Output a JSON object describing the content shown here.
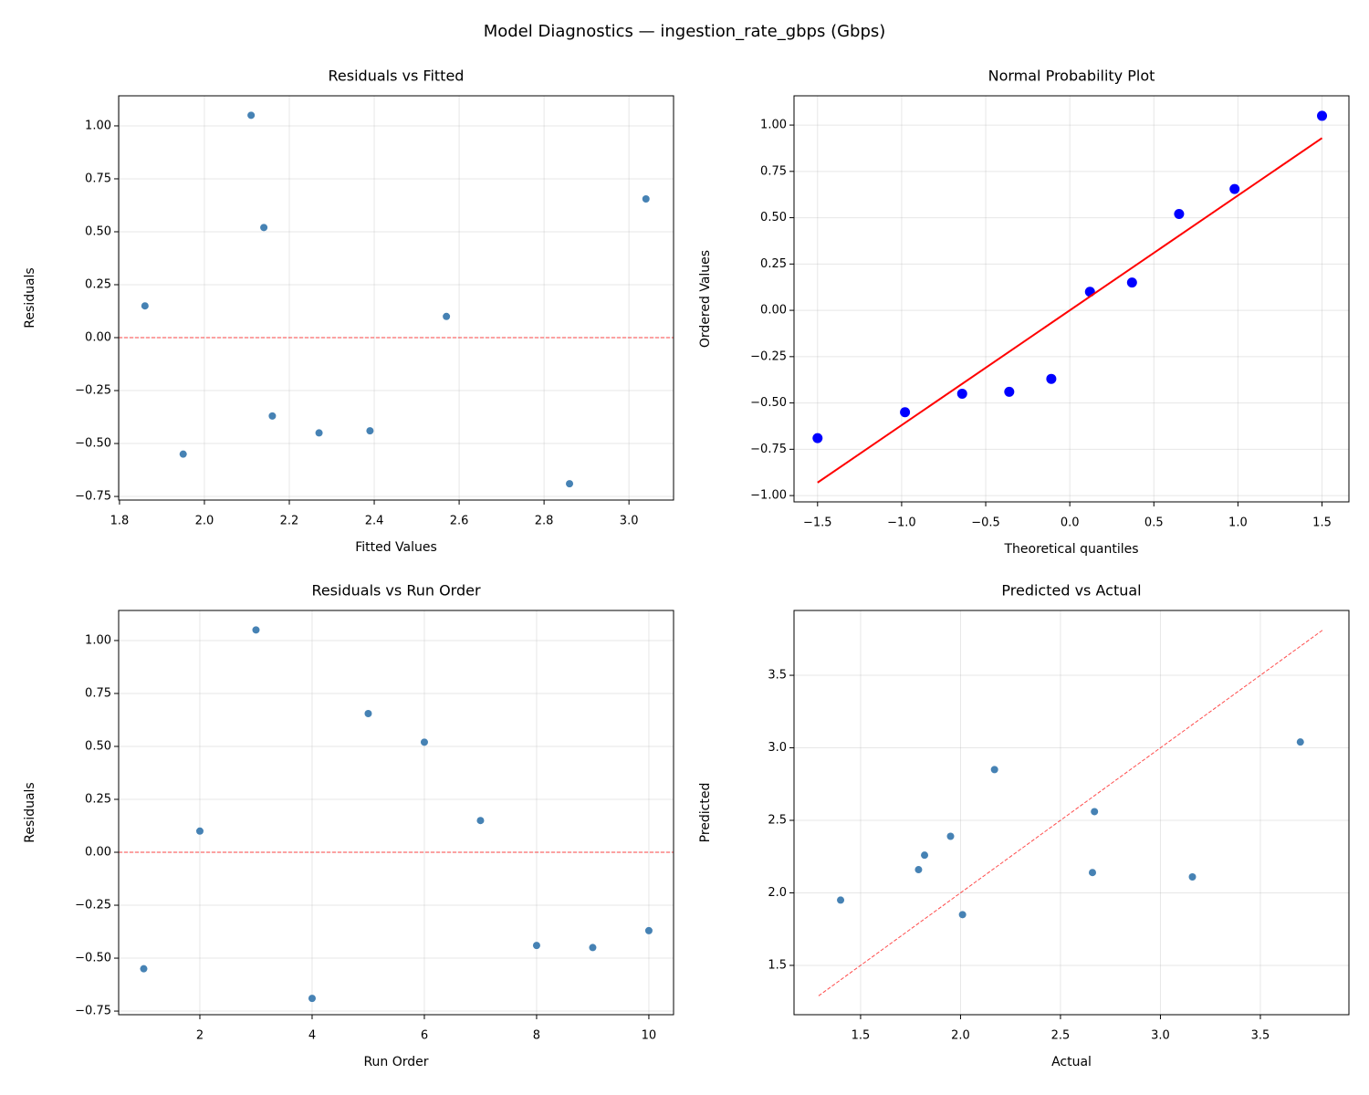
{
  "title": "Model Diagnostics — ingestion_rate_gbps (Gbps)",
  "chart_data": [
    {
      "type": "scatter",
      "title": "Residuals vs Fitted",
      "xlabel": "Fitted Values",
      "ylabel": "Residuals",
      "grid": true,
      "xlim": [
        1.798,
        3.105
      ],
      "ylim": [
        -0.767,
        1.142
      ],
      "xticks": [
        1.8,
        {
          "value": 2,
          "label": "2.0"
        },
        2.2,
        2.4,
        2.6,
        2.8,
        {
          "value": 3,
          "label": "3.0"
        }
      ],
      "yticks": [
        {
          "value": -0.75,
          "label": "−0.75"
        },
        {
          "value": -0.5,
          "label": "−0.50"
        },
        {
          "value": -0.25,
          "label": "−0.25"
        },
        {
          "value": 0,
          "label": "0.00"
        },
        0.25,
        {
          "value": 0.5,
          "label": "0.50"
        },
        0.75,
        {
          "value": 1,
          "label": "1.00"
        }
      ],
      "hline": {
        "y": 0,
        "color": "#ff0000"
      },
      "series": [
        {
          "type": "scatter",
          "marker": "small",
          "color": "#4682b4",
          "x": [
            1.95,
            2.57,
            2.11,
            2.86,
            3.04,
            2.14,
            1.86,
            2.39,
            2.27,
            2.16
          ],
          "values": [
            -0.55,
            0.1,
            1.05,
            -0.69,
            0.655,
            0.52,
            0.15,
            -0.44,
            -0.45,
            -0.37
          ]
        }
      ]
    },
    {
      "type": "scatter",
      "title": "Normal Probability Plot",
      "xlabel": "Theoretical quantiles",
      "ylabel": "Ordered Values",
      "grid": true,
      "xlim": [
        -1.64,
        1.66
      ],
      "ylim": [
        -1.034,
        1.158
      ],
      "xticks": [
        {
          "value": -1.5,
          "label": "−1.5"
        },
        {
          "value": -1,
          "label": "−1.0"
        },
        {
          "value": -0.5,
          "label": "−0.5"
        },
        {
          "value": 0,
          "label": "0.0"
        },
        0.5,
        {
          "value": 1,
          "label": "1.0"
        },
        1.5
      ],
      "yticks": [
        {
          "value": -1,
          "label": "−1.00"
        },
        {
          "value": -0.75,
          "label": "−0.75"
        },
        {
          "value": -0.5,
          "label": "−0.50"
        },
        {
          "value": -0.25,
          "label": "−0.25"
        },
        {
          "value": 0,
          "label": "0.00"
        },
        0.25,
        {
          "value": 0.5,
          "label": "0.50"
        },
        0.75,
        {
          "value": 1,
          "label": "1.00"
        }
      ],
      "series": [
        {
          "type": "scatter",
          "marker": "large",
          "color": "#0000ff",
          "x": [
            -1.5,
            -0.98,
            -0.64,
            -0.36,
            -0.11,
            0.12,
            0.37,
            0.65,
            0.98,
            1.5
          ],
          "values": [
            -0.69,
            -0.55,
            -0.45,
            -0.44,
            -0.37,
            0.1,
            0.15,
            0.52,
            0.655,
            1.05
          ]
        },
        {
          "type": "line",
          "color": "#ff0000",
          "x": [
            -1.5,
            1.5
          ],
          "values": [
            -0.93,
            0.93
          ]
        }
      ]
    },
    {
      "type": "scatter",
      "title": "Residuals vs Run Order",
      "xlabel": "Run Order",
      "ylabel": "Residuals",
      "grid": true,
      "xlim": [
        0.553,
        10.44
      ],
      "ylim": [
        -0.767,
        1.142
      ],
      "xticks": [
        2,
        4,
        6,
        8,
        10
      ],
      "yticks": [
        {
          "value": -0.75,
          "label": "−0.75"
        },
        {
          "value": -0.5,
          "label": "−0.50"
        },
        {
          "value": -0.25,
          "label": "−0.25"
        },
        {
          "value": 0,
          "label": "0.00"
        },
        0.25,
        {
          "value": 0.5,
          "label": "0.50"
        },
        0.75,
        {
          "value": 1,
          "label": "1.00"
        }
      ],
      "hline": {
        "y": 0,
        "color": "#ff0000"
      },
      "series": [
        {
          "type": "scatter",
          "marker": "small",
          "color": "#4682b4",
          "x": [
            1,
            2,
            3,
            4,
            5,
            6,
            7,
            8,
            9,
            10
          ],
          "values": [
            -0.55,
            0.1,
            1.05,
            -0.69,
            0.655,
            0.52,
            0.15,
            -0.44,
            -0.45,
            -0.37
          ]
        }
      ]
    },
    {
      "type": "scatter",
      "title": "Predicted vs Actual",
      "xlabel": "Actual",
      "ylabel": "Predicted",
      "grid": true,
      "xlim": [
        1.167,
        3.943
      ],
      "ylim": [
        1.16,
        3.947
      ],
      "xticks": [
        1.5,
        {
          "value": 2,
          "label": "2.0"
        },
        2.5,
        {
          "value": 3,
          "label": "3.0"
        },
        3.5
      ],
      "yticks": [
        1.5,
        {
          "value": 2,
          "label": "2.0"
        },
        2.5,
        {
          "value": 3,
          "label": "3.0"
        },
        3.5
      ],
      "series": [
        {
          "type": "scatter",
          "marker": "small",
          "color": "#4682b4",
          "x": [
            1.4,
            2.67,
            3.16,
            2.17,
            3.7,
            2.66,
            2.01,
            1.95,
            1.82,
            1.79
          ],
          "values": [
            1.95,
            2.56,
            2.11,
            2.85,
            3.04,
            2.14,
            1.85,
            2.39,
            2.26,
            2.16
          ]
        },
        {
          "type": "line",
          "dashed": true,
          "color": "#ff0000",
          "x": [
            1.29,
            3.81
          ],
          "values": [
            1.29,
            3.81
          ]
        }
      ]
    }
  ]
}
